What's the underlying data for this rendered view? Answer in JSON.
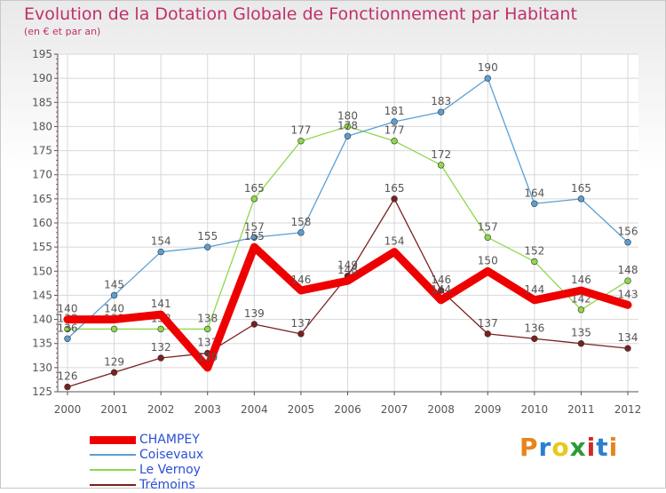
{
  "header": {
    "title": "Evolution de la Dotation Globale de Fonctionnement par Habitant",
    "subtitle": "(en € et par an)"
  },
  "logo": {
    "text": "Proxiti",
    "colors": [
      "#e8841c",
      "#2a7fd0",
      "#e8c81c",
      "#2a9a3a",
      "#d02a2a",
      "#2a7fd0",
      "#e8841c"
    ]
  },
  "chart_data": {
    "type": "line",
    "x": [
      "2000",
      "2001",
      "2002",
      "2003",
      "2004",
      "2005",
      "2006",
      "2007",
      "2008",
      "2009",
      "2010",
      "2011",
      "2012"
    ],
    "ylim": [
      125,
      195
    ],
    "yticks": [
      125,
      130,
      135,
      140,
      145,
      150,
      155,
      160,
      165,
      170,
      175,
      180,
      185,
      190,
      195
    ],
    "grid": true,
    "legend_position": "bottom-left",
    "series": [
      {
        "name": "Trémoins",
        "color": "#7a2020",
        "emphasis": false,
        "values": [
          126,
          129,
          132,
          133,
          139,
          137,
          149,
          165,
          146,
          137,
          136,
          135,
          134
        ]
      },
      {
        "name": "Le Vernoy",
        "color": "#8ed84a",
        "emphasis": false,
        "values": [
          138,
          138,
          138,
          138,
          165,
          177,
          180,
          177,
          172,
          157,
          152,
          142,
          148
        ]
      },
      {
        "name": "Coisevaux",
        "color": "#5a9fd4",
        "emphasis": false,
        "values": [
          136,
          145,
          154,
          155,
          157,
          158,
          178,
          181,
          183,
          190,
          164,
          165,
          156
        ]
      },
      {
        "name": "CHAMPEY",
        "color": "#ee0000",
        "emphasis": true,
        "values": [
          140,
          140,
          141,
          130,
          155,
          146,
          148,
          154,
          144,
          150,
          144,
          146,
          143
        ]
      }
    ],
    "legend_order": [
      "CHAMPEY",
      "Coisevaux",
      "Le Vernoy",
      "Trémoins"
    ]
  }
}
